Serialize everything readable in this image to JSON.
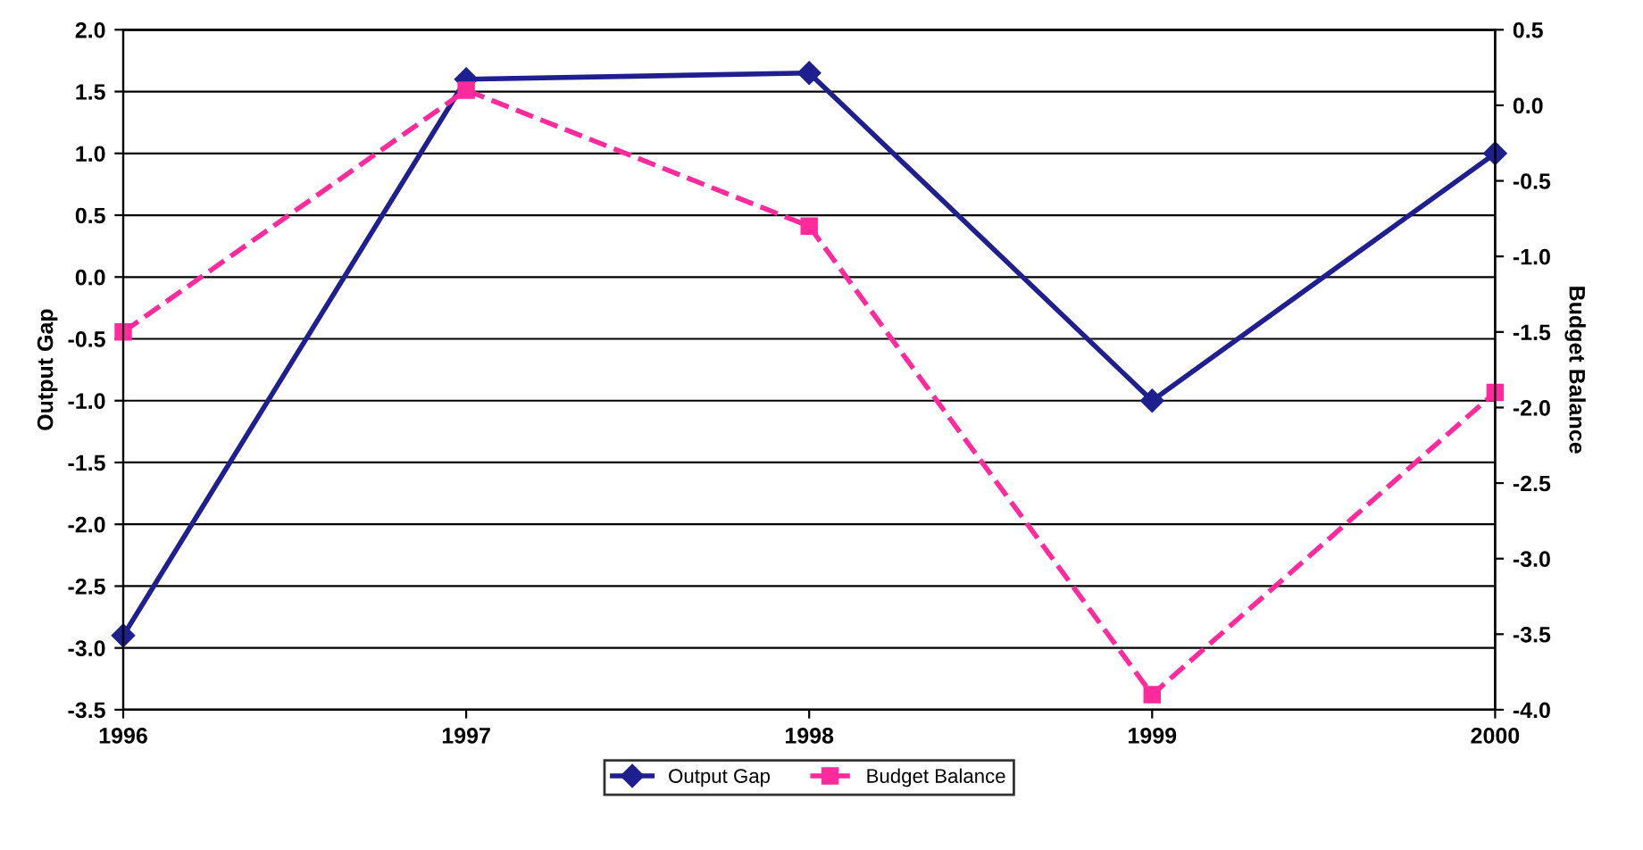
{
  "chart_data": {
    "type": "line",
    "x": [
      1996,
      1997,
      1998,
      1999,
      2000
    ],
    "xlim": [
      1996,
      2000
    ],
    "xticks": [
      1996,
      1997,
      1998,
      1999,
      2000
    ],
    "ylabel": "Output Gap",
    "y2label": "Budget Balance",
    "ylim": [
      -3.5,
      2.0
    ],
    "yticks": [
      {
        "value": -3.5,
        "label": "-3.5"
      },
      {
        "value": -3.0,
        "label": "-3.0"
      },
      {
        "value": -2.5,
        "label": "-2.5"
      },
      {
        "value": -2.0,
        "label": "-2.0"
      },
      {
        "value": -1.5,
        "label": "-1.5"
      },
      {
        "value": -1.0,
        "label": "-1.0"
      },
      {
        "value": -0.5,
        "label": "-0.5"
      },
      {
        "value": 0.0,
        "label": "0.0"
      },
      {
        "value": 0.5,
        "label": "0.5"
      },
      {
        "value": 1.0,
        "label": "1.0"
      },
      {
        "value": 1.5,
        "label": "1.5"
      },
      {
        "value": 2.0,
        "label": "2.0"
      }
    ],
    "y2lim": [
      -4.0,
      0.5
    ],
    "y2ticks": [
      {
        "value": -4.0,
        "label": "-4.0"
      },
      {
        "value": -3.5,
        "label": "-3.5"
      },
      {
        "value": -3.0,
        "label": "-3.0"
      },
      {
        "value": -2.5,
        "label": "-2.5"
      },
      {
        "value": -2.0,
        "label": "-2.0"
      },
      {
        "value": -1.5,
        "label": "-1.5"
      },
      {
        "value": -1.0,
        "label": "-1.0"
      },
      {
        "value": -0.5,
        "label": "-0.5"
      },
      {
        "value": 0.0,
        "label": "0.0"
      },
      {
        "value": 0.5,
        "label": "0.5"
      }
    ],
    "grid": "y",
    "legend": "bottom",
    "series": [
      {
        "name": "Output Gap",
        "color": "#1f1f8f",
        "values": [
          -2.9,
          1.6,
          1.65,
          -1.0,
          1.0
        ],
        "marker": "diamond",
        "line_style": "solid"
      },
      {
        "name": "Budget Balance",
        "color": "#ff2a9c",
        "values": [
          -1.5,
          0.1,
          -0.8,
          -3.9,
          -1.9
        ],
        "axis": "y2",
        "marker": "square",
        "line_style": "dashed"
      }
    ]
  }
}
